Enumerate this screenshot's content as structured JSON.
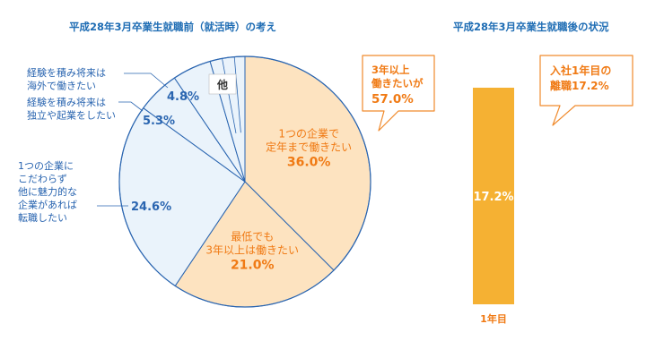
{
  "chart_data": [
    {
      "type": "pie",
      "title": "平成28年3月卒業生就職前（就活時）の考え",
      "slices": [
        {
          "label_lines": [
            "1つの企業で",
            "定年まで働きたい"
          ],
          "value": 36.0,
          "value_label": "36.0%",
          "color": "#fde3c0"
        },
        {
          "label_lines": [
            "最低でも",
            "3年以上は働きたい"
          ],
          "value": 21.0,
          "value_label": "21.0%",
          "color": "#fde3c0"
        },
        {
          "label_lines": [
            "1つの企業に",
            "こだわらず",
            "他に魅力的な",
            "企業があれば",
            "転職したい"
          ],
          "value": 24.6,
          "value_label": "24.6%",
          "color": "#eaf3fb"
        },
        {
          "label_lines": [
            "経験を積み将来は",
            "独立や起業をしたい"
          ],
          "value": 5.3,
          "value_label": "5.3%",
          "color": "#eaf3fb"
        },
        {
          "label_lines": [
            "経験を積み将来は",
            "海外で働きたい"
          ],
          "value": 4.8,
          "value_label": "4.8%",
          "color": "#eaf3fb"
        },
        {
          "label_lines": [
            "他"
          ],
          "value": 4.3,
          "value_label": "",
          "color": "#eaf3fb"
        }
      ],
      "callout": {
        "lines": [
          "3年以上",
          "働きたいが",
          "57.0%"
        ],
        "value": 57.0
      }
    },
    {
      "type": "bar",
      "title": "平成28年3月卒業生就職後の状況",
      "categories": [
        "1年目"
      ],
      "values": [
        17.2
      ],
      "value_labels": [
        "17.2%"
      ],
      "color": "#f5b133",
      "ylim": [
        0,
        100
      ],
      "callout": {
        "lines": [
          "入社1年目の",
          "離職17.2%"
        ],
        "value": 17.2
      }
    }
  ],
  "colors": {
    "title": "#1f6db4",
    "orange_text": "#f07a14",
    "orange_stroke": "#f08a2c",
    "pie_outline": "#2a65b0",
    "bar": "#f5b133"
  }
}
